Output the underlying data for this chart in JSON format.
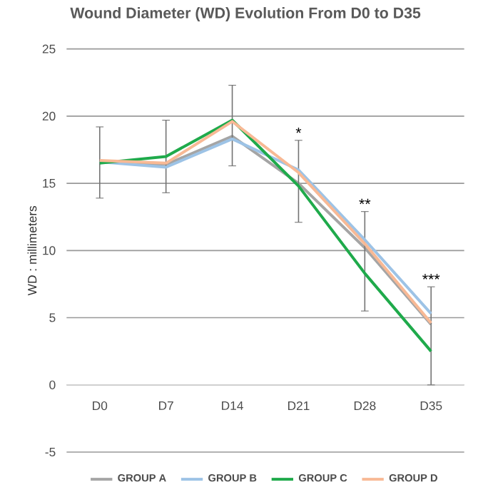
{
  "chart_data": {
    "type": "line",
    "title": "Wound Diameter (WD) Evolution From D0 to D35",
    "ylabel": "WD : millimeters",
    "categories": [
      "D0",
      "D7",
      "D14",
      "D21",
      "D28",
      "D35"
    ],
    "series": [
      {
        "name": "GROUP A",
        "color": "#a5a5a5",
        "values": [
          16.6,
          16.4,
          18.5,
          15.0,
          10.2,
          4.5
        ],
        "errors": [
          [
            13.9,
            19.2
          ],
          [
            14.3,
            19.7
          ],
          [
            16.3,
            22.3
          ],
          [
            12.1,
            18.2
          ],
          [
            5.5,
            12.9
          ],
          [
            0,
            7.3
          ]
        ]
      },
      {
        "name": "GROUP B",
        "color": "#9dc3e6",
        "values": [
          16.6,
          16.2,
          18.3,
          16.0,
          10.8,
          5.3
        ]
      },
      {
        "name": "GROUP C",
        "color": "#1faa4b",
        "values": [
          16.5,
          17.0,
          19.7,
          14.8,
          8.3,
          2.5
        ]
      },
      {
        "name": "GROUP D",
        "color": "#f8b995",
        "values": [
          16.7,
          16.5,
          19.6,
          15.8,
          10.5,
          4.6
        ]
      }
    ],
    "ylim": [
      -5,
      25
    ],
    "yticks": [
      -5,
      0,
      5,
      10,
      15,
      20,
      25
    ],
    "grid": "y",
    "legend": "bottom",
    "marker": "none",
    "line_style": "solid",
    "annotations": [
      "*",
      "**",
      "***"
    ]
  }
}
